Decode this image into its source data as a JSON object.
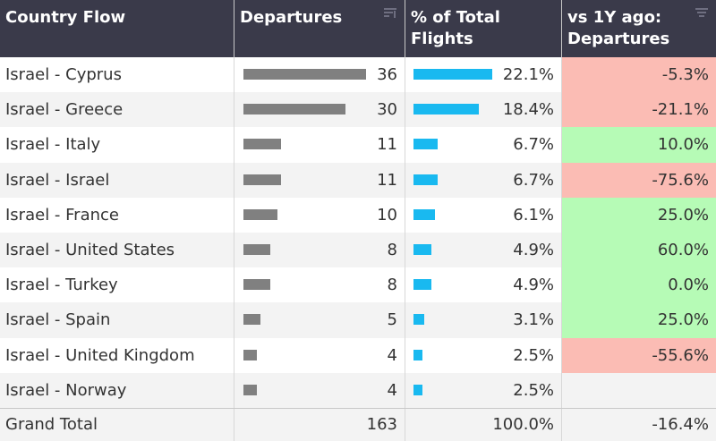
{
  "header": {
    "columns": [
      {
        "label": "Country Flow",
        "sort_icon": ""
      },
      {
        "label": "Departures",
        "sort_icon": "sort-descending-icon"
      },
      {
        "label": "% of Total Flights",
        "sort_icon": ""
      },
      {
        "label": "vs 1Y ago: Departures",
        "sort_icon": "filter-sort-icon"
      }
    ]
  },
  "max_departures": 36,
  "max_percent": 22.1,
  "colors": {
    "departures_bar": "#808080",
    "percent_bar": "#19b9f0",
    "negative_change": "#fbbcb4",
    "positive_change": "#b6fbb6",
    "header_bg": "#3a3a4a"
  },
  "rows": [
    {
      "flow": "Israel - Cyprus",
      "departures": 36,
      "departures_label": "36",
      "percent": 22.1,
      "percent_label": "22.1%",
      "change_label": "-5.3%",
      "change_sign": "neg"
    },
    {
      "flow": "Israel - Greece",
      "departures": 30,
      "departures_label": "30",
      "percent": 18.4,
      "percent_label": "18.4%",
      "change_label": "-21.1%",
      "change_sign": "neg"
    },
    {
      "flow": "Israel - Italy",
      "departures": 11,
      "departures_label": "11",
      "percent": 6.7,
      "percent_label": "6.7%",
      "change_label": "10.0%",
      "change_sign": "pos"
    },
    {
      "flow": "Israel - Israel",
      "departures": 11,
      "departures_label": "11",
      "percent": 6.7,
      "percent_label": "6.7%",
      "change_label": "-75.6%",
      "change_sign": "neg"
    },
    {
      "flow": "Israel - France",
      "departures": 10,
      "departures_label": "10",
      "percent": 6.1,
      "percent_label": "6.1%",
      "change_label": "25.0%",
      "change_sign": "pos"
    },
    {
      "flow": "Israel - United States",
      "departures": 8,
      "departures_label": "8",
      "percent": 4.9,
      "percent_label": "4.9%",
      "change_label": "60.0%",
      "change_sign": "pos"
    },
    {
      "flow": "Israel - Turkey",
      "departures": 8,
      "departures_label": "8",
      "percent": 4.9,
      "percent_label": "4.9%",
      "change_label": "0.0%",
      "change_sign": "pos"
    },
    {
      "flow": "Israel - Spain",
      "departures": 5,
      "departures_label": "5",
      "percent": 3.1,
      "percent_label": "3.1%",
      "change_label": "25.0%",
      "change_sign": "pos"
    },
    {
      "flow": "Israel - United Kingdom",
      "departures": 4,
      "departures_label": "4",
      "percent": 2.5,
      "percent_label": "2.5%",
      "change_label": "-55.6%",
      "change_sign": "neg"
    },
    {
      "flow": "Israel - Norway",
      "departures": 4,
      "departures_label": "4",
      "percent": 2.5,
      "percent_label": "2.5%",
      "change_label": "",
      "change_sign": "none"
    }
  ],
  "grand_total": {
    "label": "Grand Total",
    "departures": "163",
    "percent": "100.0%",
    "change": "-16.4%"
  }
}
